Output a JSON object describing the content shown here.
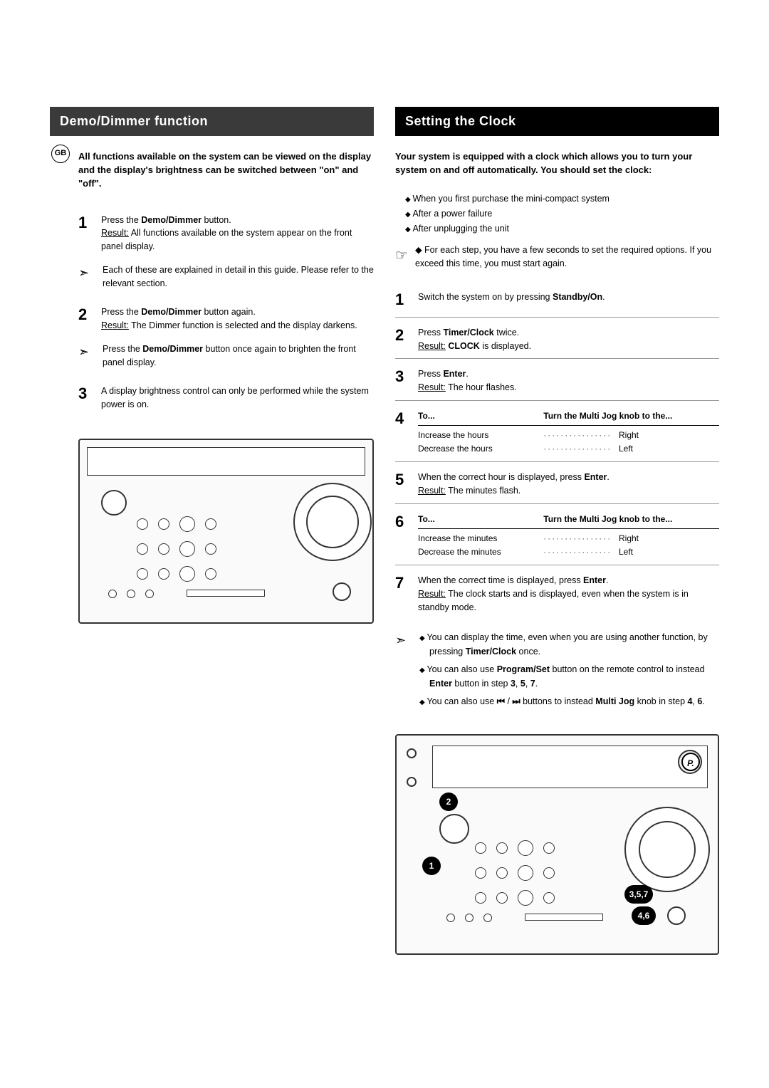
{
  "region_badge": "GB",
  "left": {
    "header_bg": "#3a3a3a",
    "title": "Demo/Dimmer function",
    "intro": "All functions available on the system can be viewed on the display and the display's brightness can be switched between \"on\" and \"off\".",
    "steps": [
      {
        "n": "1",
        "html": "Press the <b>Demo/Dimmer</b> button.<br><span class='u'>Result:</span> All functions available on the system appear on the front panel display."
      },
      {
        "n": "2",
        "html": "Press the <b>Demo/Dimmer</b> button again.<br><span class='u'>Result:</span> The Dimmer function is selected and the display darkens."
      },
      {
        "n": "3",
        "html": "A display brightness control can only be performed while the system power is on."
      }
    ],
    "pointers": [
      "Each of these are explained in detail in this guide. Please refer to the relevant section.",
      "Press the <b>Demo/Dimmer</b> button once again to brighten the front panel display."
    ]
  },
  "right": {
    "header_bg": "#000000",
    "title": "Setting the Clock",
    "intro": "Your system is equipped with a clock which allows you to turn your system on and off automatically. You should set the clock:",
    "when_list": [
      "When you first purchase the mini-compact system",
      "After a power failure",
      "After unplugging the unit"
    ],
    "note_icon": "☞",
    "note": "For each step, you have a few seconds to set the required options. If you exceed this time, you must start again.",
    "steps": [
      {
        "n": "1",
        "html": "Switch the system on by pressing <b>Standby/On</b>."
      },
      {
        "n": "2",
        "html": "Press <b>Timer/Clock</b> twice.<br><span class='u'>Result:</span> <b>CLOCK</b> is displayed."
      },
      {
        "n": "3",
        "html": "Press <b>Enter</b>.<br><span class='u'>Result:</span> The hour flashes."
      },
      {
        "n": "4",
        "type": "jog",
        "head1": "To...",
        "head2": "Turn the Multi Jog knob to the...",
        "rows": [
          {
            "a": "Increase the hours",
            "b": "Right"
          },
          {
            "a": "Decrease the hours",
            "b": "Left"
          }
        ]
      },
      {
        "n": "5",
        "html": "When the correct hour is displayed, press <b>Enter</b>.<br><span class='u'>Result:</span> The minutes flash."
      },
      {
        "n": "6",
        "type": "jog",
        "head1": "To...",
        "head2": "Turn the Multi Jog knob to the...",
        "rows": [
          {
            "a": "Increase the minutes",
            "b": "Right"
          },
          {
            "a": "Decrease the minutes",
            "b": "Left"
          }
        ]
      },
      {
        "n": "7",
        "html": "When the correct time is displayed, press <b>Enter</b>.<br><span class='u'>Result:</span> The clock starts and is displayed, even when the system is in standby mode."
      }
    ],
    "tips_icon": "➣",
    "tips": [
      "You can display the time, even when you are using another function, by pressing <b>Timer/Clock</b> once.",
      "You can also use <b>Program/Set</b> button on the remote control to instead <b>Enter</b> button in step <b>3</b>, <b>5</b>, <b>7</b>.",
      "You can also use <b>⏮</b> / <b>⏭</b> buttons to instead <b>Multi Jog</b> knob in step <b>4</b>, <b>6</b>."
    ],
    "callouts": {
      "c1": "1",
      "c2": "2",
      "c3": "3,5,7",
      "c4": "4,6",
      "cp": "P."
    }
  }
}
